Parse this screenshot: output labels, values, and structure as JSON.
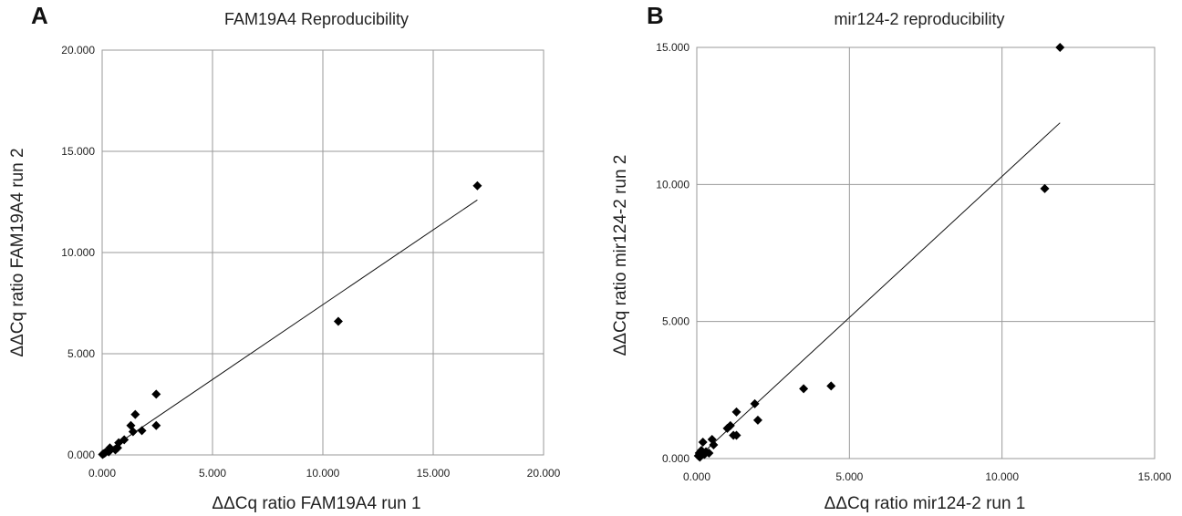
{
  "chart_data": [
    {
      "type": "scatter",
      "panel": "A",
      "title": "FAM19A4 Reproducibility",
      "xlabel": "ΔΔCq ratio FAM19A4 run 1",
      "ylabel": "ΔΔCq ratio FAM19A4 run 2",
      "xlim": [
        0,
        20
      ],
      "ylim": [
        0,
        20
      ],
      "x_ticks": [
        0,
        5,
        10,
        15,
        20
      ],
      "y_ticks": [
        0,
        5,
        10,
        15,
        20
      ],
      "x_tick_labels": [
        "0.000",
        "5.000",
        "10.000",
        "15.000",
        "20.000"
      ],
      "y_tick_labels": [
        "0.000",
        "5.000",
        "10.000",
        "15.000",
        "20.000"
      ],
      "grid": true,
      "points": [
        {
          "x": 0.02,
          "y": 0.02
        },
        {
          "x": 0.05,
          "y": 0.05
        },
        {
          "x": 0.1,
          "y": 0.08
        },
        {
          "x": 0.15,
          "y": 0.12
        },
        {
          "x": 0.3,
          "y": 0.15
        },
        {
          "x": 0.35,
          "y": 0.35
        },
        {
          "x": 0.6,
          "y": 0.25
        },
        {
          "x": 0.7,
          "y": 0.35
        },
        {
          "x": 0.75,
          "y": 0.6
        },
        {
          "x": 1.0,
          "y": 0.75
        },
        {
          "x": 1.3,
          "y": 1.45
        },
        {
          "x": 1.4,
          "y": 1.15
        },
        {
          "x": 1.5,
          "y": 2.0
        },
        {
          "x": 1.8,
          "y": 1.2
        },
        {
          "x": 2.45,
          "y": 3.0
        },
        {
          "x": 2.45,
          "y": 1.45
        },
        {
          "x": 10.7,
          "y": 6.6
        },
        {
          "x": 17.0,
          "y": 13.3
        }
      ],
      "trendline": {
        "x": [
          0,
          17
        ],
        "y": [
          0.03,
          12.6
        ]
      }
    },
    {
      "type": "scatter",
      "panel": "B",
      "title": "mir124-2 reproducibility",
      "xlabel": "ΔΔCq ratio mir124-2 run 1",
      "ylabel": "ΔΔCq ratio mir124-2 run 2",
      "xlim": [
        0,
        15
      ],
      "ylim": [
        0,
        15
      ],
      "x_ticks": [
        0,
        5,
        10,
        15
      ],
      "y_ticks": [
        0,
        5,
        10,
        15
      ],
      "x_tick_labels": [
        "0.000",
        "5.000",
        "10.000",
        "15.000"
      ],
      "y_tick_labels": [
        "0.000",
        "5.000",
        "10.000",
        "15.000"
      ],
      "grid": true,
      "points": [
        {
          "x": 0.05,
          "y": 0.1
        },
        {
          "x": 0.08,
          "y": 0.2
        },
        {
          "x": 0.1,
          "y": 0.05
        },
        {
          "x": 0.15,
          "y": 0.3
        },
        {
          "x": 0.2,
          "y": 0.6
        },
        {
          "x": 0.25,
          "y": 0.15
        },
        {
          "x": 0.3,
          "y": 0.25
        },
        {
          "x": 0.4,
          "y": 0.2
        },
        {
          "x": 0.5,
          "y": 0.7
        },
        {
          "x": 0.55,
          "y": 0.5
        },
        {
          "x": 1.0,
          "y": 1.1
        },
        {
          "x": 1.1,
          "y": 1.2
        },
        {
          "x": 1.2,
          "y": 0.85
        },
        {
          "x": 1.3,
          "y": 1.7
        },
        {
          "x": 1.3,
          "y": 0.85
        },
        {
          "x": 1.9,
          "y": 2.0
        },
        {
          "x": 2.0,
          "y": 1.4
        },
        {
          "x": 3.5,
          "y": 2.55
        },
        {
          "x": 4.4,
          "y": 2.65
        },
        {
          "x": 11.4,
          "y": 9.85
        },
        {
          "x": 11.9,
          "y": 15.0
        }
      ],
      "trendline": {
        "x": [
          0,
          11.9
        ],
        "y": [
          0,
          12.25
        ]
      }
    }
  ]
}
